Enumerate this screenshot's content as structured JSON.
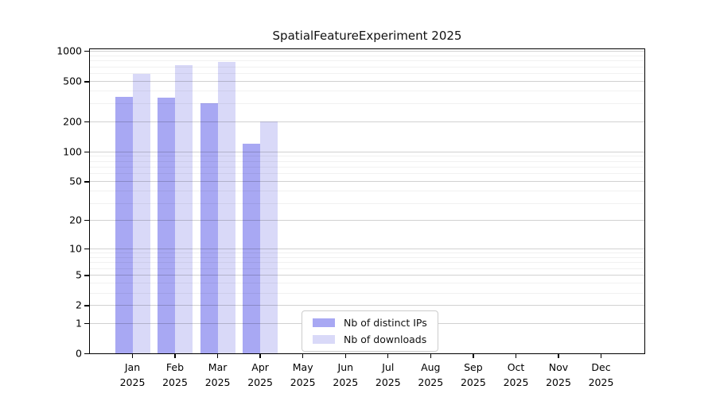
{
  "title": "SpatialFeatureExperiment 2025",
  "legend": {
    "items": [
      {
        "label": "Nb of distinct IPs"
      },
      {
        "label": "Nb of downloads"
      }
    ]
  },
  "chart_data": {
    "type": "bar",
    "title": "SpatialFeatureExperiment 2025",
    "y_scale": "log10(1+x)",
    "ylim": [
      0,
      1000
    ],
    "y_ticks": [
      0,
      1,
      2,
      5,
      10,
      20,
      50,
      100,
      200,
      500,
      1000
    ],
    "minor_gridlines": [
      3,
      4,
      6,
      7,
      8,
      9,
      30,
      40,
      60,
      70,
      80,
      90,
      300,
      400,
      600,
      700,
      800,
      900
    ],
    "months": [
      "Jan",
      "Feb",
      "Mar",
      "Apr",
      "May",
      "Jun",
      "Jul",
      "Aug",
      "Sep",
      "Oct",
      "Nov",
      "Dec"
    ],
    "year": "2025",
    "series": [
      {
        "name": "Nb of distinct IPs",
        "color": "#a8a8f3",
        "values": [
          350,
          345,
          300,
          120,
          0,
          0,
          0,
          0,
          0,
          0,
          0,
          0
        ]
      },
      {
        "name": "Nb of downloads",
        "color": "#d9d9f8",
        "values": [
          590,
          720,
          775,
          200,
          0,
          0,
          0,
          0,
          0,
          0,
          0,
          0
        ]
      }
    ],
    "grid": true,
    "legend_position": "inside-bottom-center"
  },
  "colors": {
    "bar_distinct_ips": "#a8a8f3",
    "bar_downloads": "#d9d9f8",
    "grid_major": "#cccccc",
    "grid_minor": "#ededed",
    "axis": "#000000"
  }
}
